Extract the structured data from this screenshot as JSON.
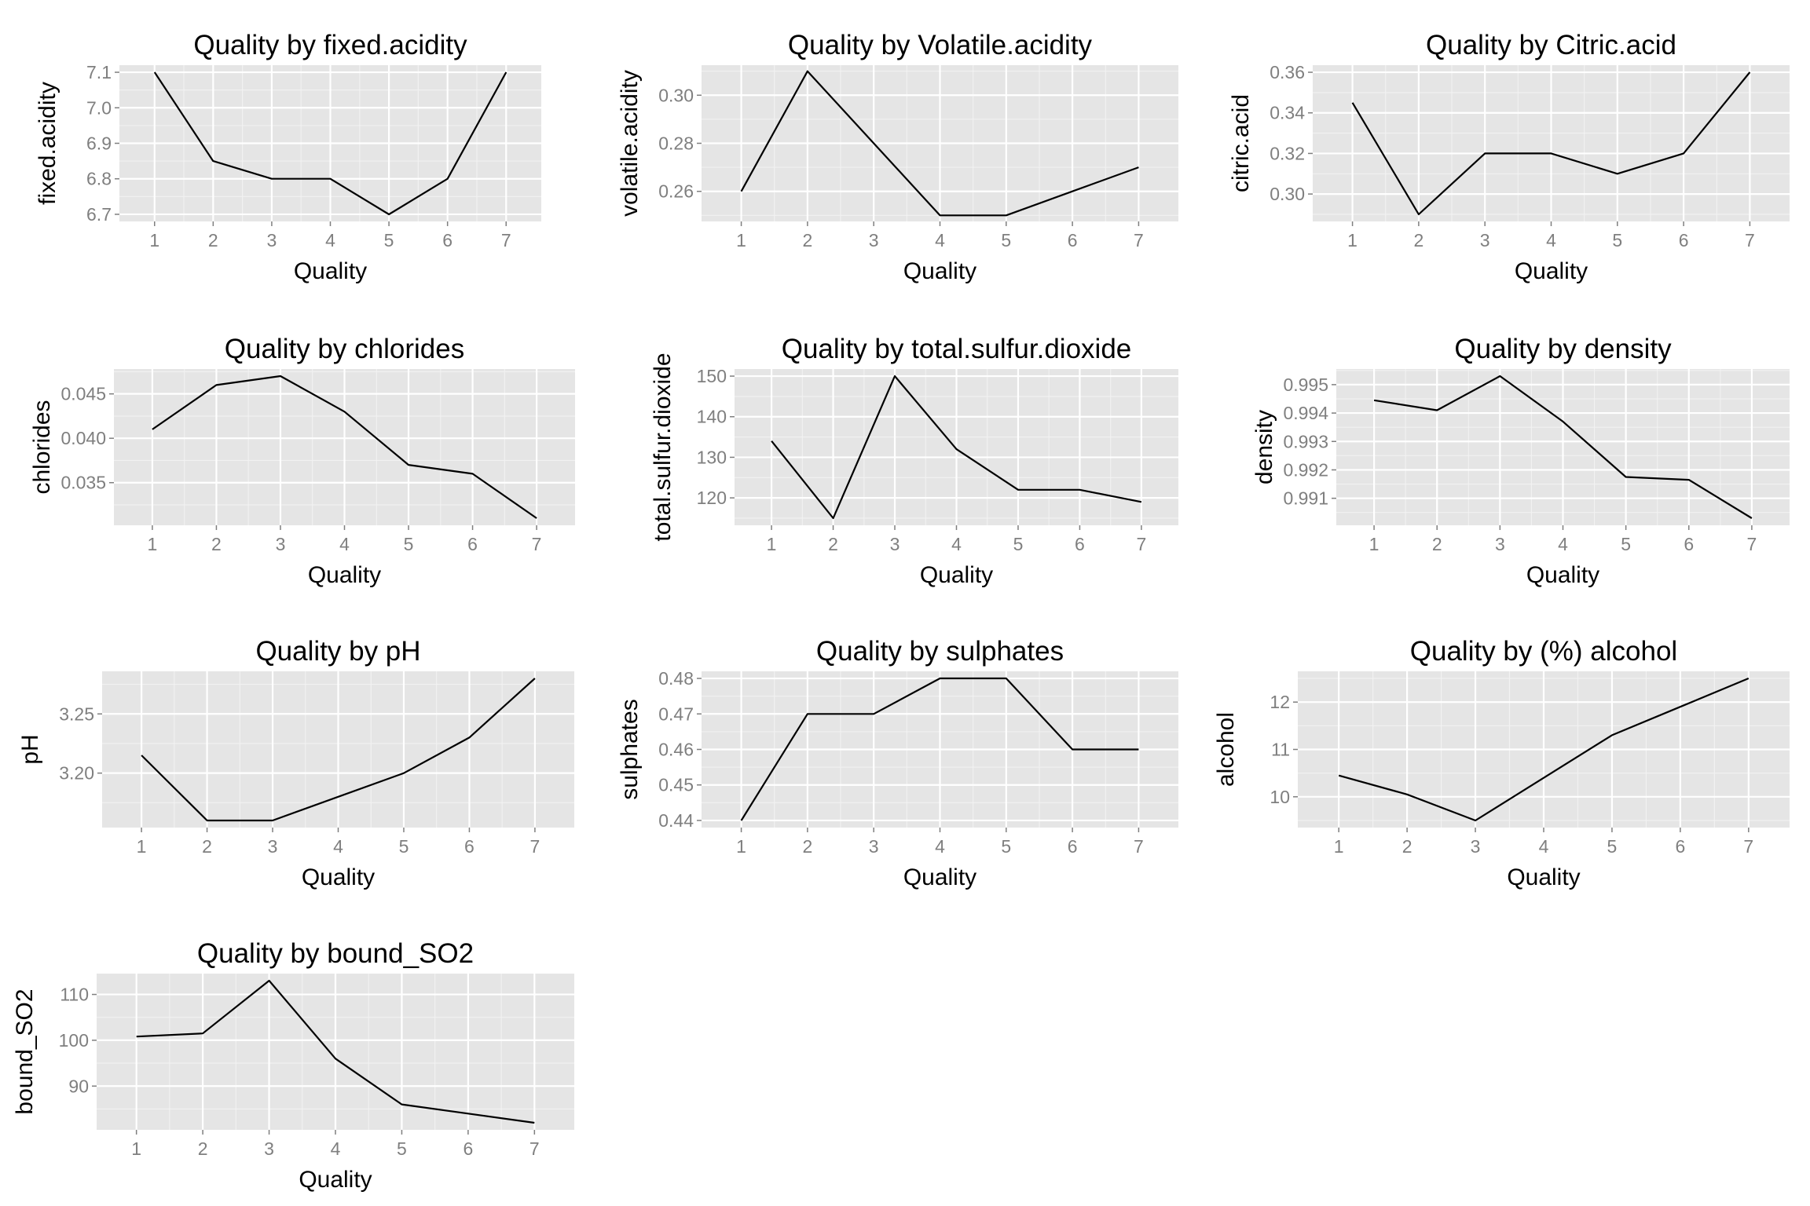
{
  "chart_data": [
    {
      "type": "line",
      "title": "Quality by fixed.acidity",
      "xlabel": "Quality",
      "ylabel": "fixed.acidity",
      "x": [
        1,
        2,
        3,
        4,
        5,
        6,
        7
      ],
      "values": [
        7.1,
        6.85,
        6.8,
        6.8,
        6.7,
        6.8,
        7.1
      ],
      "xlim": [
        0.4,
        7.6
      ],
      "ylim": [
        6.68,
        7.12
      ],
      "yticks": [
        6.7,
        6.8,
        6.9,
        7.0,
        7.1
      ],
      "ytick_labels": [
        "6.7",
        "6.8",
        "6.9",
        "7.0",
        "7.1"
      ],
      "grid": true
    },
    {
      "type": "line",
      "title": "Quality by Volatile.acidity",
      "xlabel": "Quality",
      "ylabel": "volatile.acidity",
      "x": [
        1,
        2,
        3,
        4,
        5,
        6,
        7
      ],
      "values": [
        0.26,
        0.31,
        0.28,
        0.25,
        0.25,
        0.26,
        0.27
      ],
      "xlim": [
        0.4,
        7.6
      ],
      "ylim": [
        0.2475,
        0.3125
      ],
      "yticks": [
        0.26,
        0.28,
        0.3
      ],
      "ytick_labels": [
        "0.26",
        "0.28",
        "0.30"
      ],
      "grid": true
    },
    {
      "type": "line",
      "title": "Quality by Citric.acid",
      "xlabel": "Quality",
      "ylabel": "citric.acid",
      "x": [
        1,
        2,
        3,
        4,
        5,
        6,
        7
      ],
      "values": [
        0.345,
        0.29,
        0.32,
        0.32,
        0.31,
        0.32,
        0.36
      ],
      "xlim": [
        0.4,
        7.6
      ],
      "ylim": [
        0.2865,
        0.3635
      ],
      "yticks": [
        0.3,
        0.32,
        0.34,
        0.36
      ],
      "ytick_labels": [
        "0.30",
        "0.32",
        "0.34",
        "0.36"
      ],
      "grid": true
    },
    {
      "type": "line",
      "title": "Quality by chlorides",
      "xlabel": "Quality",
      "ylabel": "chlorides",
      "x": [
        1,
        2,
        3,
        4,
        5,
        6,
        7
      ],
      "values": [
        0.041,
        0.046,
        0.047,
        0.043,
        0.037,
        0.036,
        0.031
      ],
      "xlim": [
        0.4,
        7.6
      ],
      "ylim": [
        0.0302,
        0.0478
      ],
      "yticks": [
        0.035,
        0.04,
        0.045
      ],
      "ytick_labels": [
        "0.035",
        "0.040",
        "0.045"
      ],
      "grid": true
    },
    {
      "type": "line",
      "title": "Quality by total.sulfur.dioxide",
      "xlabel": "Quality",
      "ylabel": "total.sulfur.dioxide",
      "x": [
        1,
        2,
        3,
        4,
        5,
        6,
        7
      ],
      "values": [
        134,
        115,
        150,
        132,
        122,
        122,
        119
      ],
      "xlim": [
        0.4,
        7.6
      ],
      "ylim": [
        113.25,
        151.75
      ],
      "yticks": [
        120,
        130,
        140,
        150
      ],
      "ytick_labels": [
        "120",
        "130",
        "140",
        "150"
      ],
      "grid": true
    },
    {
      "type": "line",
      "title": "Quality by density",
      "xlabel": "Quality",
      "ylabel": "density",
      "x": [
        1,
        2,
        3,
        4,
        5,
        6,
        7
      ],
      "values": [
        0.99445,
        0.9941,
        0.9953,
        0.9937,
        0.99175,
        0.99165,
        0.9903
      ],
      "xlim": [
        0.4,
        7.6
      ],
      "ylim": [
        0.99005,
        0.99555
      ],
      "yticks": [
        0.991,
        0.992,
        0.993,
        0.994,
        0.995
      ],
      "ytick_labels": [
        "0.991",
        "0.992",
        "0.993",
        "0.994",
        "0.995"
      ],
      "grid": true
    },
    {
      "type": "line",
      "title": "Quality by pH",
      "xlabel": "Quality",
      "ylabel": "pH",
      "x": [
        1,
        2,
        3,
        4,
        5,
        6,
        7
      ],
      "values": [
        3.215,
        3.16,
        3.16,
        3.18,
        3.2,
        3.23,
        3.28
      ],
      "xlim": [
        0.4,
        7.6
      ],
      "ylim": [
        3.154,
        3.286
      ],
      "yticks": [
        3.2,
        3.25
      ],
      "ytick_labels": [
        "3.20",
        "3.25"
      ],
      "grid": true
    },
    {
      "type": "line",
      "title": "Quality by sulphates",
      "xlabel": "Quality",
      "ylabel": "sulphates",
      "x": [
        1,
        2,
        3,
        4,
        5,
        6,
        7
      ],
      "values": [
        0.44,
        0.47,
        0.47,
        0.48,
        0.48,
        0.46,
        0.46
      ],
      "xlim": [
        0.4,
        7.6
      ],
      "ylim": [
        0.438,
        0.482
      ],
      "yticks": [
        0.44,
        0.45,
        0.46,
        0.47,
        0.48
      ],
      "ytick_labels": [
        "0.44",
        "0.45",
        "0.46",
        "0.47",
        "0.48"
      ],
      "grid": true
    },
    {
      "type": "line",
      "title": "Quality by (%) alcohol",
      "xlabel": "Quality",
      "ylabel": "alcohol",
      "x": [
        1,
        2,
        3,
        4,
        5,
        6,
        7
      ],
      "values": [
        10.45,
        10.05,
        9.5,
        10.4,
        11.3,
        11.9,
        12.5
      ],
      "xlim": [
        0.4,
        7.6
      ],
      "ylim": [
        9.35,
        12.65
      ],
      "yticks": [
        10,
        11,
        12
      ],
      "ytick_labels": [
        "10",
        "11",
        "12"
      ],
      "grid": true
    },
    {
      "type": "line",
      "title": "Quality by bound_SO2",
      "xlabel": "Quality",
      "ylabel": "bound_SO2",
      "x": [
        1,
        2,
        3,
        4,
        5,
        6,
        7
      ],
      "values": [
        100.8,
        101.5,
        113,
        96,
        86,
        84,
        82
      ],
      "xlim": [
        0.4,
        7.6
      ],
      "ylim": [
        80.45,
        114.55
      ],
      "yticks": [
        90,
        100,
        110
      ],
      "ytick_labels": [
        "90",
        "100",
        "110"
      ],
      "grid": true
    }
  ]
}
